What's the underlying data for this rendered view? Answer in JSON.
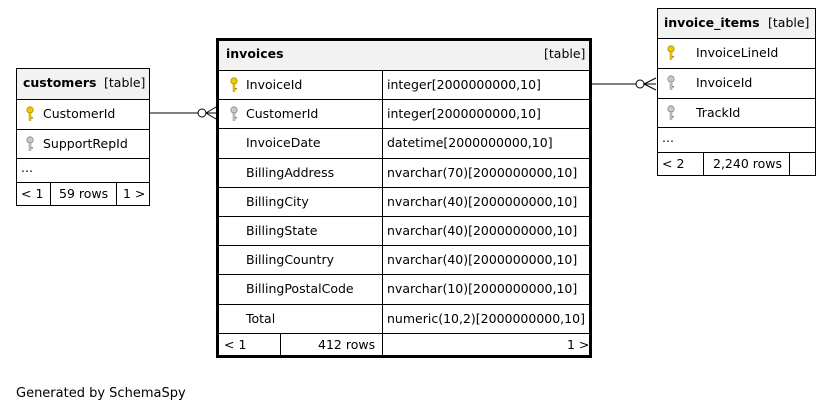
{
  "colors": {
    "pk": "#f0c800",
    "fk": "#a8a8a8",
    "header_bg": "#f2f2f2"
  },
  "customers": {
    "name": "customers",
    "kind": "[table]",
    "columns": [
      {
        "name": "CustomerId",
        "key": "primary-key"
      },
      {
        "name": "SupportRepId",
        "key": "foreign-key"
      }
    ],
    "more": "...",
    "footer": {
      "prev": "< 1",
      "rows": "59 rows",
      "next": "1 >"
    }
  },
  "invoices": {
    "name": "invoices",
    "kind": "[table]",
    "columns": [
      {
        "name": "InvoiceId",
        "type": "integer[2000000000,10]",
        "key": "primary-key"
      },
      {
        "name": "CustomerId",
        "type": "integer[2000000000,10]",
        "key": "foreign-key"
      },
      {
        "name": "InvoiceDate",
        "type": "datetime[2000000000,10]",
        "key": ""
      },
      {
        "name": "BillingAddress",
        "type": "nvarchar(70)[2000000000,10]",
        "key": ""
      },
      {
        "name": "BillingCity",
        "type": "nvarchar(40)[2000000000,10]",
        "key": ""
      },
      {
        "name": "BillingState",
        "type": "nvarchar(40)[2000000000,10]",
        "key": ""
      },
      {
        "name": "BillingCountry",
        "type": "nvarchar(40)[2000000000,10]",
        "key": ""
      },
      {
        "name": "BillingPostalCode",
        "type": "nvarchar(10)[2000000000,10]",
        "key": ""
      },
      {
        "name": "Total",
        "type": "numeric(10,2)[2000000000,10]",
        "key": ""
      }
    ],
    "footer": {
      "prev": "< 1",
      "rows": "412 rows",
      "next": "1 >"
    }
  },
  "invoice_items": {
    "name": "invoice_items",
    "kind": "[table]",
    "columns": [
      {
        "name": "InvoiceLineId",
        "key": "primary-key"
      },
      {
        "name": "InvoiceId",
        "key": "foreign-key"
      },
      {
        "name": "TrackId",
        "key": "foreign-key"
      }
    ],
    "more": "...",
    "footer": {
      "prev": "< 2",
      "rows": "2,240 rows"
    }
  },
  "generated_by": "Generated by SchemaSpy"
}
